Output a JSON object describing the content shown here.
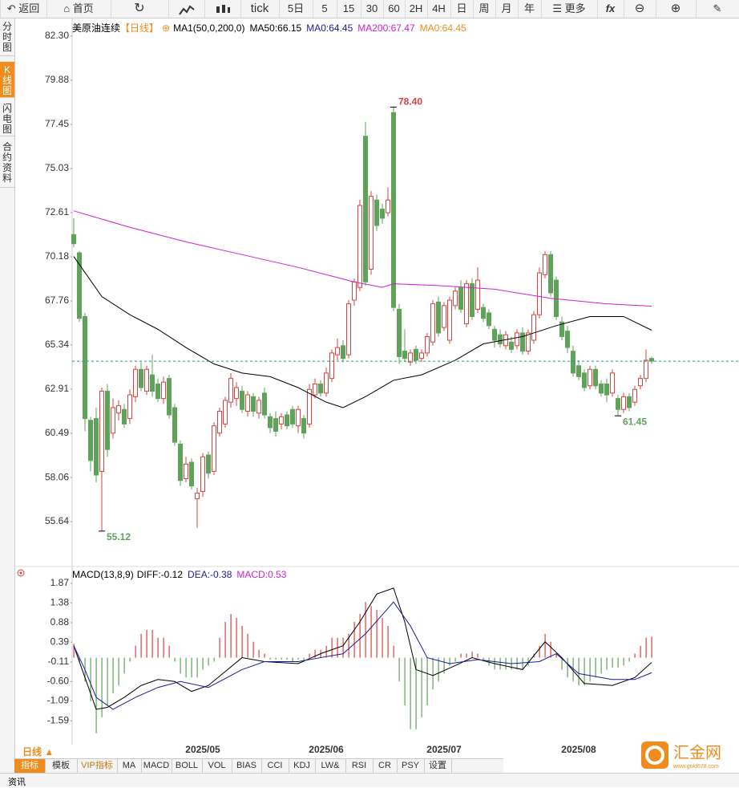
{
  "toolbar": {
    "back": "返回",
    "home": "首页",
    "tick": "tick",
    "periods": [
      "5日",
      "5",
      "15",
      "30",
      "60",
      "2H",
      "4H",
      "日",
      "周",
      "月",
      "年"
    ],
    "more": "更多"
  },
  "side_tabs": [
    "分时图",
    "K线图",
    "闪电图",
    "合约资料"
  ],
  "bottom": {
    "period": "日线 ▲",
    "tabs": [
      "指标",
      "模板",
      "VIP指标",
      "MA",
      "MACD",
      "BOLL",
      "VOL",
      "BIAS",
      "CCI",
      "KDJ",
      "LW&",
      "RSI",
      "CR",
      "PSY",
      "设置"
    ],
    "footer": "资讯",
    "logo": "汇金网",
    "site": "www.gold678.com"
  },
  "chart_data": [
    {
      "type": "candlestick",
      "title": "美原油连续",
      "period": "【日线】",
      "legend": [
        {
          "text": "MA1(50,0,200,0)",
          "color": "#000000"
        },
        {
          "text": "MA50:66.15",
          "color": "#000000"
        },
        {
          "text": "MA0:64.45",
          "color": "#1a1aa0"
        },
        {
          "text": "MA200:67.47",
          "color": "#d020d0"
        },
        {
          "text": "MA0:64.45",
          "color": "#f08c1e"
        }
      ],
      "ylim": [
        53.44,
        83.31
      ],
      "yticks": [
        {
          "value": 82.3,
          "label": "82.30"
        },
        {
          "value": 79.88,
          "label": "79.88"
        },
        {
          "value": 77.45,
          "label": "77.45"
        },
        {
          "value": 75.03,
          "label": "75.03"
        },
        {
          "value": 72.61,
          "label": "72.61"
        },
        {
          "value": 70.18,
          "label": "70.18"
        },
        {
          "value": 67.76,
          "label": "67.76"
        },
        {
          "value": 65.34,
          "label": "65.34"
        },
        {
          "value": 62.91,
          "label": "62.91"
        },
        {
          "value": 60.49,
          "label": "60.49"
        },
        {
          "value": 58.06,
          "label": "58.06"
        },
        {
          "value": 55.64,
          "label": "55.64"
        }
      ],
      "xticks": [
        {
          "value": 23,
          "label": "2025/05"
        },
        {
          "value": 45,
          "label": "2025/06"
        },
        {
          "value": 66,
          "label": "2025/07"
        },
        {
          "value": 90,
          "label": "2025/08"
        }
      ],
      "up_color": "#d9433f",
      "down_color": "#5fa35a",
      "candles": [
        [
          71.4,
          72.3,
          70.7,
          70.9
        ],
        [
          70.4,
          70.5,
          66.6,
          66.8
        ],
        [
          66.9,
          67.1,
          60.6,
          61.3
        ],
        [
          61.2,
          61.4,
          58.4,
          59.0
        ],
        [
          61.3,
          61.9,
          57.8,
          58.2
        ],
        [
          58.4,
          63.0,
          55.12,
          62.8
        ],
        [
          62.8,
          63.2,
          59.2,
          59.6
        ],
        [
          60.5,
          62.4,
          60.2,
          61.9
        ],
        [
          61.6,
          62.3,
          61.2,
          62.0
        ],
        [
          61.8,
          62.1,
          60.8,
          61.0
        ],
        [
          61.3,
          62.9,
          61.0,
          62.6
        ],
        [
          62.5,
          64.2,
          62.2,
          64.0
        ],
        [
          64.0,
          64.4,
          62.8,
          63.0
        ],
        [
          62.8,
          64.2,
          62.6,
          64.0
        ],
        [
          63.7,
          64.8,
          62.5,
          62.8
        ],
        [
          63.2,
          63.5,
          62.2,
          62.4
        ],
        [
          62.4,
          63.6,
          62.1,
          63.3
        ],
        [
          63.5,
          63.7,
          61.3,
          61.5
        ],
        [
          61.9,
          62.1,
          59.8,
          60.0
        ],
        [
          59.9,
          60.1,
          57.6,
          57.9
        ],
        [
          58.0,
          59.2,
          57.8,
          58.8
        ],
        [
          58.9,
          59.1,
          57.4,
          57.6
        ],
        [
          56.9,
          57.5,
          55.3,
          57.2
        ],
        [
          57.3,
          59.4,
          57.0,
          59.2
        ],
        [
          59.3,
          59.5,
          58.0,
          58.3
        ],
        [
          58.4,
          61.1,
          58.2,
          60.9
        ],
        [
          60.5,
          61.9,
          60.3,
          61.7
        ],
        [
          61.0,
          62.5,
          60.8,
          62.3
        ],
        [
          62.2,
          63.8,
          61.9,
          63.5
        ],
        [
          62.4,
          63.3,
          62.0,
          63.0
        ],
        [
          62.8,
          63.1,
          61.6,
          61.8
        ],
        [
          61.7,
          62.8,
          61.4,
          62.6
        ],
        [
          62.5,
          62.7,
          61.4,
          61.7
        ],
        [
          61.6,
          62.5,
          61.3,
          62.3
        ],
        [
          62.7,
          63.0,
          61.3,
          61.5
        ],
        [
          61.4,
          61.6,
          60.5,
          60.8
        ],
        [
          61.3,
          61.7,
          60.3,
          60.6
        ],
        [
          61.0,
          61.6,
          60.7,
          61.4
        ],
        [
          61.5,
          61.7,
          60.7,
          60.9
        ],
        [
          61.8,
          62.0,
          60.8,
          61.0
        ],
        [
          60.9,
          62.0,
          60.5,
          61.8
        ],
        [
          61.3,
          61.5,
          60.2,
          60.5
        ],
        [
          61.0,
          63.2,
          60.8,
          62.9
        ],
        [
          62.6,
          63.5,
          62.4,
          63.2
        ],
        [
          63.2,
          63.4,
          62.5,
          62.7
        ],
        [
          62.7,
          64.1,
          62.5,
          63.8
        ],
        [
          63.5,
          65.1,
          63.3,
          64.9
        ],
        [
          64.8,
          65.7,
          64.5,
          65.2
        ],
        [
          65.3,
          65.6,
          64.4,
          64.6
        ],
        [
          64.8,
          67.8,
          64.6,
          67.6
        ],
        [
          67.8,
          69.0,
          67.5,
          68.8
        ],
        [
          68.5,
          73.3,
          68.3,
          73.0
        ],
        [
          76.8,
          77.6,
          68.6,
          68.8
        ],
        [
          69.5,
          73.8,
          69.2,
          73.5
        ],
        [
          73.3,
          73.6,
          71.6,
          71.9
        ],
        [
          72.8,
          73.1,
          72.0,
          72.3
        ],
        [
          72.6,
          74.0,
          72.4,
          73.3
        ],
        [
          78.1,
          78.4,
          67.2,
          67.4
        ],
        [
          67.3,
          67.6,
          64.3,
          64.7
        ],
        [
          65.0,
          66.2,
          64.4,
          64.6
        ],
        [
          64.4,
          65.1,
          64.2,
          64.9
        ],
        [
          65.1,
          65.3,
          64.3,
          64.5
        ],
        [
          64.6,
          65.1,
          64.4,
          64.9
        ],
        [
          64.9,
          66.0,
          64.7,
          65.8
        ],
        [
          65.5,
          67.8,
          65.3,
          67.6
        ],
        [
          67.7,
          68.0,
          65.8,
          66.0
        ],
        [
          66.3,
          67.7,
          66.1,
          67.5
        ],
        [
          65.6,
          68.0,
          65.4,
          67.8
        ],
        [
          67.5,
          68.5,
          67.3,
          68.3
        ],
        [
          68.5,
          68.9,
          67.1,
          67.3
        ],
        [
          66.5,
          68.9,
          66.3,
          68.7
        ],
        [
          68.7,
          69.0,
          66.7,
          66.9
        ],
        [
          67.3,
          69.6,
          67.1,
          68.9
        ],
        [
          67.4,
          67.6,
          66.6,
          66.8
        ],
        [
          67.1,
          67.3,
          66.2,
          66.4
        ],
        [
          66.2,
          66.4,
          65.2,
          65.6
        ],
        [
          65.9,
          66.2,
          65.2,
          65.4
        ],
        [
          65.3,
          66.1,
          65.1,
          65.9
        ],
        [
          65.5,
          65.8,
          64.9,
          65.1
        ],
        [
          65.3,
          66.2,
          65.1,
          66.0
        ],
        [
          66.0,
          66.3,
          64.8,
          65.0
        ],
        [
          65.0,
          66.2,
          64.8,
          66.0
        ],
        [
          65.6,
          67.2,
          65.4,
          67.0
        ],
        [
          67.0,
          69.6,
          66.8,
          69.3
        ],
        [
          69.2,
          70.5,
          69.0,
          70.3
        ],
        [
          70.3,
          70.5,
          68.0,
          68.2
        ],
        [
          68.9,
          69.1,
          66.7,
          66.9
        ],
        [
          66.6,
          66.9,
          65.6,
          65.8
        ],
        [
          66.1,
          66.4,
          64.9,
          65.2
        ],
        [
          65.0,
          65.3,
          63.6,
          63.8
        ],
        [
          64.2,
          64.5,
          63.4,
          63.6
        ],
        [
          63.8,
          64.0,
          62.8,
          63.0
        ],
        [
          63.1,
          64.2,
          62.9,
          64.0
        ],
        [
          64.0,
          64.2,
          62.9,
          63.1
        ],
        [
          63.2,
          63.4,
          62.5,
          62.7
        ],
        [
          63.2,
          63.5,
          62.2,
          62.6
        ],
        [
          62.7,
          64.0,
          62.5,
          63.8
        ],
        [
          62.4,
          62.6,
          61.45,
          61.8
        ],
        [
          61.8,
          62.7,
          61.6,
          62.5
        ],
        [
          62.5,
          62.7,
          61.7,
          61.9
        ],
        [
          62.2,
          63.1,
          62.0,
          62.9
        ],
        [
          63.1,
          63.7,
          62.9,
          63.5
        ],
        [
          63.5,
          65.1,
          63.3,
          64.5
        ],
        [
          64.6,
          64.7,
          64.3,
          64.45
        ]
      ],
      "lines": [
        {
          "color": "#d020d0",
          "x": [
            0,
            10,
            20,
            30,
            40,
            50,
            55,
            57,
            65,
            75,
            85,
            95,
            103
          ],
          "values": [
            72.7,
            71.8,
            71.0,
            70.3,
            69.6,
            68.8,
            68.5,
            68.7,
            68.6,
            68.4,
            67.9,
            67.6,
            67.47
          ]
        },
        {
          "color": "#000000",
          "x": [
            0,
            5,
            10,
            15,
            20,
            25,
            30,
            35,
            40,
            45,
            48,
            52,
            57,
            62,
            68,
            73,
            80,
            86,
            92,
            98,
            103
          ],
          "values": [
            70.2,
            68.0,
            67.0,
            66.2,
            65.2,
            64.3,
            63.8,
            63.6,
            63.0,
            62.2,
            61.9,
            62.5,
            63.4,
            63.7,
            64.5,
            65.4,
            65.8,
            66.4,
            66.9,
            66.9,
            66.15
          ]
        }
      ],
      "reference_line": {
        "value": 64.45,
        "color": "#1a9a8a"
      },
      "annotations": [
        {
          "index": 57,
          "value": 78.4,
          "label": "78.40",
          "color": "#d9433f"
        },
        {
          "index": 5,
          "value": 55.12,
          "label": "55.12",
          "color": "#5fa35a"
        },
        {
          "index": 97,
          "value": 61.45,
          "label": "61.45",
          "color": "#5fa35a"
        }
      ]
    },
    {
      "type": "macd",
      "title": "MACD(13,8,9)",
      "legend": [
        {
          "text": "DIFF:-0.12",
          "color": "#000000"
        },
        {
          "text": "DEA:-0.38",
          "color": "#1a1aa0"
        },
        {
          "text": "MACD:0.53",
          "color": "#d020d0"
        }
      ],
      "ylim": [
        -2.23,
        1.97
      ],
      "yticks": [
        1.87,
        1.38,
        0.88,
        0.39,
        -0.11,
        {
          "value": -0.6,
          "label": "-0.60"
        },
        -1.09,
        -1.59
      ],
      "histogram": {
        "up_color": "#d9433f",
        "down_color": "#5fa35a",
        "values": [
          0.35,
          -0.1,
          -0.6,
          -1.1,
          -1.9,
          -1.5,
          -1.2,
          -0.9,
          -0.7,
          -0.4,
          -0.1,
          0.3,
          0.6,
          0.7,
          0.7,
          0.5,
          0.5,
          0.3,
          -0.1,
          -0.4,
          -0.5,
          -0.5,
          -0.5,
          -0.3,
          -0.2,
          -0.1,
          0.5,
          0.9,
          1.1,
          1.0,
          0.8,
          0.6,
          0.4,
          0.2,
          0.1,
          -0.05,
          -0.05,
          -0.05,
          -0.05,
          -0.1,
          -0.05,
          -0.1,
          0.1,
          0.2,
          0.2,
          0.3,
          0.5,
          0.5,
          0.5,
          0.6,
          0.9,
          1.1,
          1.4,
          1.3,
          1.2,
          1.0,
          0.8,
          0.3,
          -0.6,
          -1.2,
          -1.8,
          -1.8,
          -1.5,
          -1.2,
          -0.8,
          -0.6,
          -0.4,
          -0.2,
          -0.1,
          0.1,
          0.1,
          0.15,
          0.1,
          -0.1,
          -0.2,
          -0.3,
          -0.3,
          -0.3,
          -0.3,
          -0.3,
          -0.3,
          -0.2,
          0.1,
          0.3,
          0.6,
          0.4,
          0.1,
          -0.3,
          -0.5,
          -0.6,
          -0.7,
          -0.7,
          -0.6,
          -0.5,
          -0.4,
          -0.3,
          -0.25,
          -0.25,
          -0.2,
          -0.1,
          0.1,
          0.3,
          0.5,
          0.53
        ]
      },
      "lines": [
        {
          "color": "#000000",
          "x": [
            0,
            2,
            4,
            6,
            9,
            12,
            15,
            18,
            21,
            24,
            27,
            30,
            34,
            40,
            44,
            48,
            51,
            54,
            57,
            59,
            61,
            64,
            68,
            71,
            75,
            80,
            84,
            87,
            91,
            96,
            100,
            103
          ],
          "values": [
            0.3,
            -0.5,
            -1.3,
            -1.25,
            -1.0,
            -0.7,
            -0.55,
            -0.6,
            -0.85,
            -0.7,
            -0.35,
            0.0,
            -0.1,
            -0.15,
            0.1,
            0.3,
            0.9,
            1.6,
            1.75,
            0.9,
            -0.3,
            -0.45,
            -0.2,
            0.0,
            -0.15,
            -0.3,
            0.4,
            0.0,
            -0.65,
            -0.7,
            -0.5,
            -0.12
          ]
        },
        {
          "color": "#1a1aa0",
          "x": [
            0,
            2,
            4,
            7,
            11,
            15,
            19,
            24,
            30,
            34,
            40,
            44,
            48,
            52,
            57,
            60,
            63,
            67,
            72,
            78,
            83,
            86,
            90,
            96,
            100,
            103
          ],
          "values": [
            0.3,
            -0.3,
            -1.0,
            -1.3,
            -1.0,
            -0.75,
            -0.6,
            -0.75,
            -0.3,
            -0.1,
            -0.1,
            0.0,
            0.1,
            0.6,
            1.4,
            0.8,
            0.0,
            -0.15,
            -0.05,
            -0.15,
            -0.1,
            0.1,
            -0.4,
            -0.55,
            -0.55,
            -0.38
          ]
        }
      ]
    }
  ]
}
